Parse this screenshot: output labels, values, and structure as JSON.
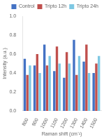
{
  "chart_data": {
    "type": "bar",
    "x_label": "Raman shift (cm⁻¹)",
    "y_label": "Intensity (a.u.)",
    "categories": [
      "800",
      "900",
      "1000",
      "1100",
      "1200",
      "1300",
      "1400",
      "1500"
    ],
    "series": [
      {
        "name": "Control",
        "color": "#4472C4",
        "values": [
          0.55,
          0.48,
          0.7,
          0.42,
          0.35,
          0.75,
          0.52,
          0.4
        ]
      },
      {
        "name": "Tripto 12h",
        "color": "#C0504D",
        "values": [
          0.38,
          0.6,
          0.48,
          0.68,
          0.62,
          0.38,
          0.7,
          0.5
        ]
      },
      {
        "name": "Tripto 24h",
        "color": "#7EC8E3",
        "values": [
          0.48,
          0.4,
          0.58,
          0.5,
          0.5,
          0.58,
          0.4,
          0.58
        ]
      }
    ],
    "ylim": [
      0,
      1
    ],
    "yticks": [
      {
        "value": 0,
        "label": "0.0"
      },
      0.2,
      0.4,
      0.6,
      0.8,
      {
        "value": 1,
        "label": "1.0"
      }
    ],
    "grid": false,
    "legend": "upper right"
  }
}
